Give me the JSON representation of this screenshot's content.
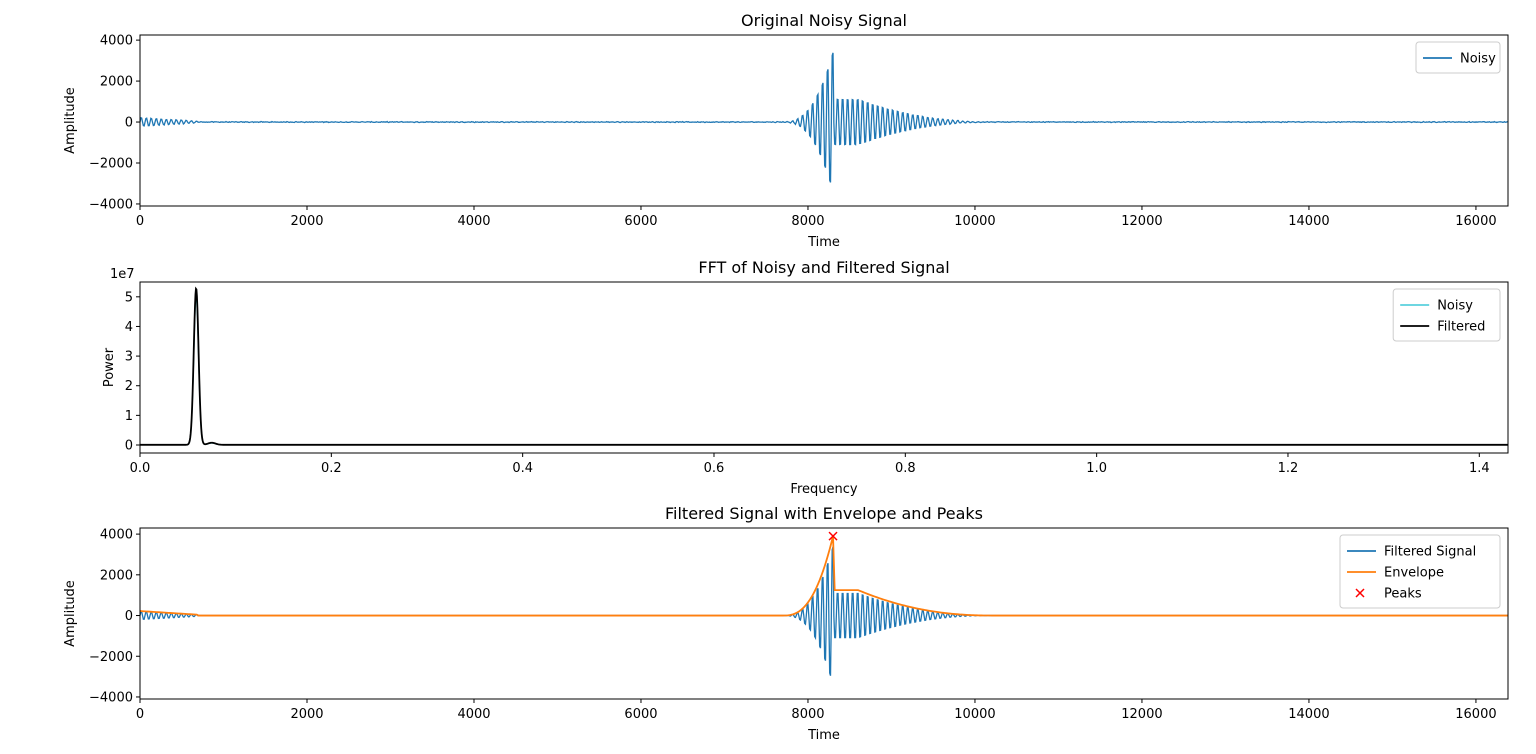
{
  "chart_data": [
    {
      "type": "line",
      "title": "Original Noisy Signal",
      "xlabel": "Time",
      "ylabel": "Amplitude",
      "xlim": [
        0,
        16384
      ],
      "ylim": [
        -4100,
        4250
      ],
      "xticks": [
        0,
        2000,
        4000,
        6000,
        8000,
        10000,
        12000,
        14000,
        16000
      ],
      "xtick_labels": [
        "0",
        "2000",
        "4000",
        "6000",
        "8000",
        "10000",
        "12000",
        "14000",
        "16000"
      ],
      "yticks": [
        -4000,
        -2000,
        0,
        2000,
        4000
      ],
      "ytick_labels": [
        "−4000",
        "−2000",
        "0",
        "2000",
        "4000"
      ],
      "legend_position": "upper-right",
      "series": [
        {
          "name": "Noisy",
          "color": "#1f77b4",
          "style": "line",
          "kind": "burst",
          "carrier_period": 60,
          "early": {
            "start": 0,
            "end": 700,
            "amp": 180
          },
          "burst": {
            "onset": 7700,
            "peak_time": 8300,
            "peak_amp": 3900,
            "rise_width": 200,
            "post_amp": 1250,
            "plateau_end": 8600,
            "decay_end": 10200
          },
          "noise": 30
        }
      ]
    },
    {
      "type": "line",
      "title": "FFT of Noisy and Filtered Signal",
      "xlabel": "Frequency",
      "ylabel": "Power",
      "y_scale_label": "1e7",
      "xlim": [
        0,
        1.43
      ],
      "ylim": [
        -2700000,
        55000000
      ],
      "xticks": [
        0.0,
        0.2,
        0.4,
        0.6,
        0.8,
        1.0,
        1.2,
        1.4
      ],
      "xtick_labels": [
        "0.0",
        "0.2",
        "0.4",
        "0.6",
        "0.8",
        "1.0",
        "1.2",
        "1.4"
      ],
      "yticks": [
        0,
        10000000,
        20000000,
        30000000,
        40000000,
        50000000
      ],
      "ytick_labels": [
        "0",
        "1",
        "2",
        "3",
        "4",
        "5"
      ],
      "legend_position": "upper-right",
      "series": [
        {
          "name": "Noisy",
          "color": "#17becf",
          "style": "line",
          "kind": "spectrum",
          "peak_freq": 0.0587,
          "peak_value": 50000000,
          "width": 0.0025,
          "small_bump": {
            "freq": 0.075,
            "value": 600000
          }
        },
        {
          "name": "Filtered",
          "color": "#000000",
          "style": "line",
          "kind": "spectrum",
          "peak_freq": 0.0587,
          "peak_value": 52800000,
          "width": 0.0025,
          "small_bump": {
            "freq": 0.075,
            "value": 700000
          }
        }
      ]
    },
    {
      "type": "line",
      "title": "Filtered Signal with Envelope and Peaks",
      "xlabel": "Time",
      "ylabel": "Amplitude",
      "xlim": [
        0,
        16384
      ],
      "ylim": [
        -4100,
        4300
      ],
      "xticks": [
        0,
        2000,
        4000,
        6000,
        8000,
        10000,
        12000,
        14000,
        16000
      ],
      "xtick_labels": [
        "0",
        "2000",
        "4000",
        "6000",
        "8000",
        "10000",
        "12000",
        "14000",
        "16000"
      ],
      "yticks": [
        -4000,
        -2000,
        0,
        2000,
        4000
      ],
      "ytick_labels": [
        "−4000",
        "−2000",
        "0",
        "2000",
        "4000"
      ],
      "legend_position": "upper-right",
      "series": [
        {
          "name": "Filtered Signal",
          "color": "#1f77b4",
          "style": "line",
          "kind": "burst",
          "carrier_period": 60,
          "early": {
            "start": 0,
            "end": 700,
            "amp": 180
          },
          "burst": {
            "onset": 7700,
            "peak_time": 8300,
            "peak_amp": 3900,
            "rise_width": 200,
            "post_amp": 1250,
            "plateau_end": 8600,
            "decay_end": 10200
          },
          "noise": 0
        },
        {
          "name": "Envelope",
          "color": "#ff7f0e",
          "style": "line",
          "kind": "envelope",
          "early": {
            "start": 0,
            "end": 700,
            "amp": 180
          },
          "burst": {
            "onset": 7700,
            "peak_time": 8300,
            "peak_amp": 3900,
            "rise_width": 200,
            "post_amp": 1250,
            "plateau_end": 8600,
            "decay_end": 10200
          }
        },
        {
          "name": "Peaks",
          "color": "#ff0000",
          "style": "marker-x",
          "points": [
            [
              8300,
              3900
            ]
          ]
        }
      ]
    }
  ]
}
